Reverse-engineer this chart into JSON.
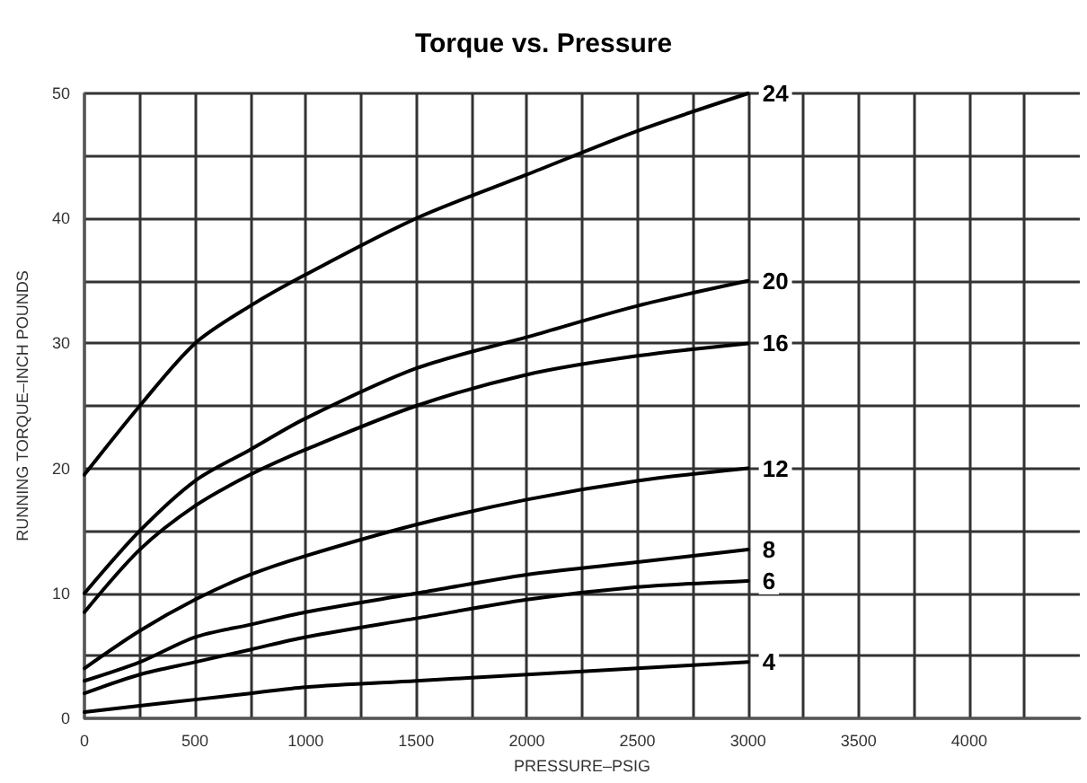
{
  "chart_data": {
    "type": "line",
    "title": "Torque vs. Pressure",
    "xlabel": "PRESSURE–PSIG",
    "ylabel": "RUNNING TORQUE–INCH POUNDS",
    "x": [
      0,
      250,
      500,
      750,
      1000,
      1500,
      2000,
      2500,
      3000
    ],
    "series": [
      {
        "name": "24",
        "color": "#000000",
        "values": [
          19.5,
          25,
          30,
          33,
          35.5,
          40,
          43.5,
          47,
          50
        ]
      },
      {
        "name": "20",
        "color": "#000000",
        "values": [
          10,
          15,
          19,
          21.5,
          24,
          28,
          30.5,
          33,
          35
        ]
      },
      {
        "name": "16",
        "color": "#000000",
        "values": [
          8.5,
          13.5,
          17,
          19.5,
          21.5,
          25,
          27.5,
          29,
          30
        ]
      },
      {
        "name": "12",
        "color": "#000000",
        "values": [
          4,
          7,
          9.5,
          11.5,
          13,
          15.5,
          17.5,
          19,
          20
        ]
      },
      {
        "name": "8",
        "color": "#000000",
        "values": [
          3,
          4.5,
          6.5,
          7.5,
          8.5,
          10,
          11.5,
          12.5,
          13.5
        ]
      },
      {
        "name": "6",
        "color": "#000000",
        "values": [
          2,
          3.5,
          4.5,
          5.5,
          6.5,
          8,
          9.5,
          10.5,
          11
        ]
      },
      {
        "name": "4",
        "color": "#000000",
        "values": [
          0.5,
          1,
          1.5,
          2,
          2.5,
          3,
          3.5,
          4,
          4.5
        ]
      }
    ],
    "xlim": [
      0,
      4500
    ],
    "xticks": [
      0,
      {
        "value": 250,
        "label": null
      },
      500,
      {
        "value": 750,
        "label": null
      },
      1000,
      {
        "value": 1250,
        "label": null
      },
      1500,
      {
        "value": 1750,
        "label": null
      },
      2000,
      {
        "value": 2250,
        "label": null
      },
      2500,
      {
        "value": 2750,
        "label": null
      },
      3000,
      {
        "value": 3250,
        "label": null
      },
      3500,
      {
        "value": 3750,
        "label": null
      },
      4000,
      {
        "value": 4250,
        "label": null
      }
    ],
    "ylim": [
      0,
      50
    ],
    "yticks": [
      0,
      {
        "value": 5,
        "label": null
      },
      10,
      {
        "value": 15,
        "label": null
      },
      20,
      {
        "value": 25,
        "label": null
      },
      30,
      {
        "value": 35,
        "label": null
      },
      40,
      {
        "value": 45,
        "label": null
      },
      50
    ],
    "grid": true,
    "legend": false,
    "marker": "none",
    "line_style": "solid"
  }
}
